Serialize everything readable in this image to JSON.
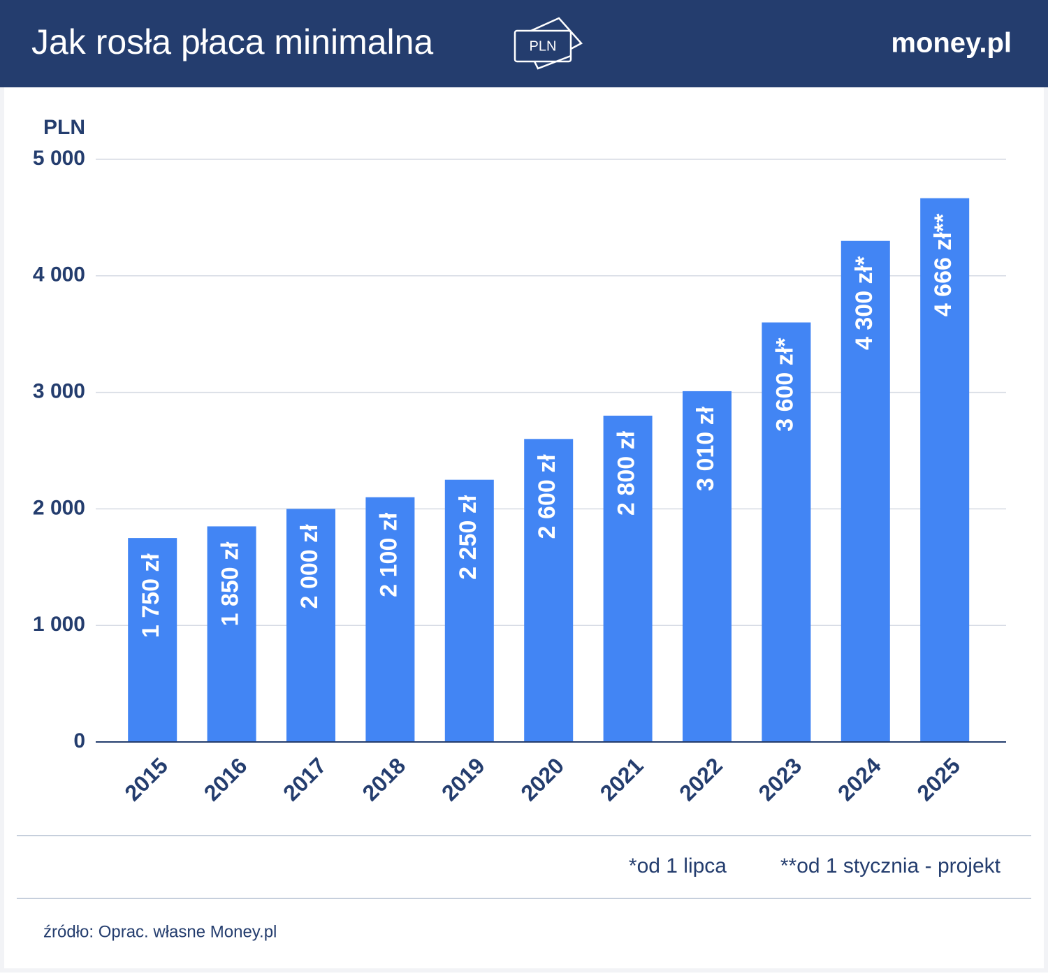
{
  "chart_data": {
    "type": "bar",
    "title": "Jak rosła płaca minimalna",
    "icon_label": "PLN",
    "brand": "money.pl",
    "y_label": "PLN",
    "categories": [
      "2015",
      "2016",
      "2017",
      "2018",
      "2019",
      "2020",
      "2021",
      "2022",
      "2023",
      "2024",
      "2025"
    ],
    "values": [
      1750,
      1850,
      2000,
      2100,
      2250,
      2600,
      2800,
      3010,
      3600,
      4300,
      4666
    ],
    "value_labels": [
      "1 750 zł",
      "1 850 zł",
      "2 000 zł",
      "2 100 zł",
      "2 250 zł",
      "2 600 zł",
      "2 800 zł",
      "3 010 zł",
      "3 600 zł*",
      "4 300 zł*",
      "4 666 zł**"
    ],
    "color": "#4285f4",
    "ylim": [
      0,
      5000
    ],
    "yticks": [
      0,
      {
        "value": 1000,
        "label": "1 000"
      },
      {
        "value": 2000,
        "label": "2 000"
      },
      {
        "value": 3000,
        "label": "3 000"
      },
      {
        "value": 4000,
        "label": "4 000"
      },
      {
        "value": 5000,
        "label": "5 000"
      }
    ],
    "grid": true,
    "notes": [
      "*od 1 lipca",
      "**od 1 stycznia - projekt"
    ],
    "source": "źródło: Oprac. własne Money.pl"
  }
}
